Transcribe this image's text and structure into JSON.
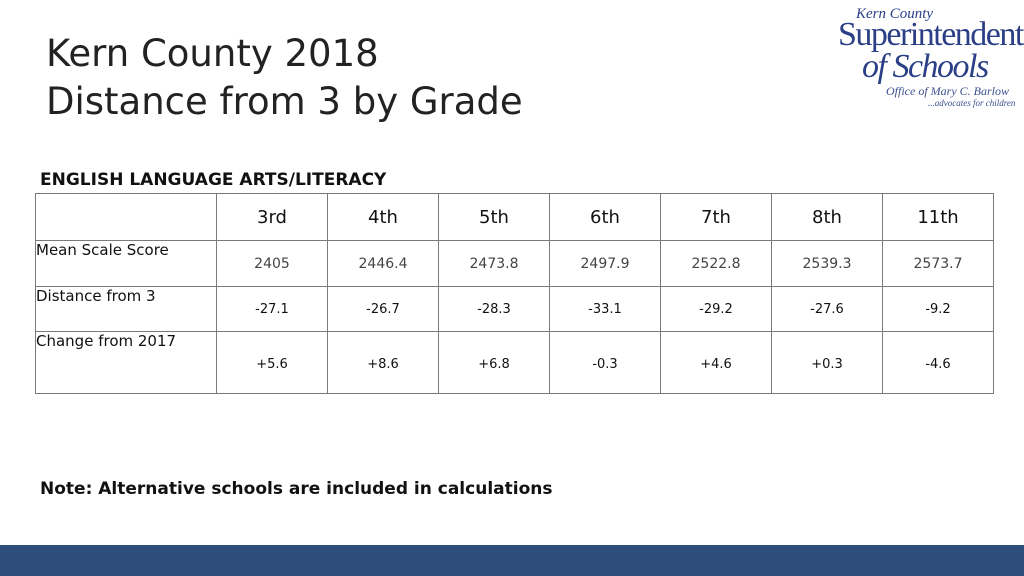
{
  "slide": {
    "title_line1": "Kern County 2018",
    "title_line2": "Distance from 3 by Grade"
  },
  "logo": {
    "county": "Kern County",
    "superintendent": "Superintendent",
    "of_schools": "of Schools",
    "office": "Office of Mary C. Barlow",
    "tagline": "...advocates for children"
  },
  "section_label": "ENGLISH LANGUAGE ARTS/LITERACY",
  "table": {
    "corner": "",
    "grades": [
      "3rd",
      "4th",
      "5th",
      "6th",
      "7th",
      "8th",
      "11th"
    ],
    "rows": [
      {
        "label": "Mean Scale Score",
        "values": [
          "2405",
          "2446.4",
          "2473.8",
          "2497.9",
          "2522.8",
          "2539.3",
          "2573.7"
        ]
      },
      {
        "label": "Distance from 3",
        "values": [
          "-27.1",
          "-26.7",
          "-28.3",
          "-33.1",
          "-29.2",
          "-27.6",
          "-9.2"
        ]
      },
      {
        "label": "Change from 2017",
        "values": [
          "+5.6",
          "+8.6",
          "+6.8",
          "-0.3",
          "+4.6",
          "+0.3",
          "-4.6"
        ]
      }
    ]
  },
  "note": "Note: Alternative schools are included in calculations",
  "colors": {
    "footer_bar": "#2d4e78",
    "logo_blue": "#2a3f86"
  }
}
